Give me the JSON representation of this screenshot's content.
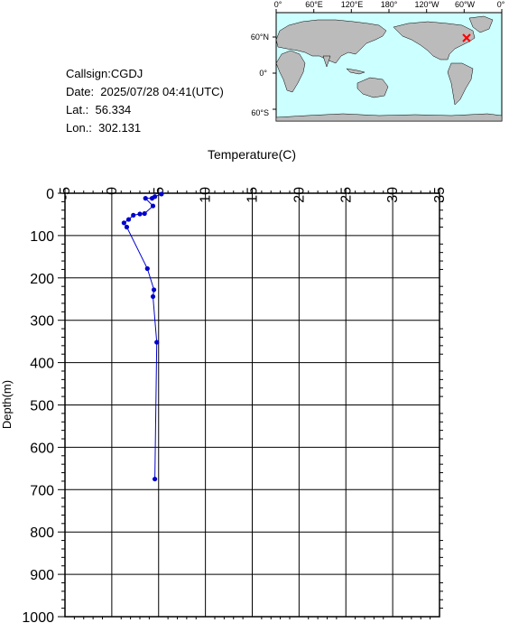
{
  "info": {
    "callsign": "Callsign:CGDJ",
    "date": "Date:  2025/07/28 04:41(UTC)",
    "lat": "Lat.:  56.334",
    "lon": "Lon.:  302.131"
  },
  "map": {
    "top_lon_labels": [
      "0°",
      "60°E",
      "120°E",
      "180°",
      "120°W",
      "60°W",
      "0°"
    ],
    "lat_labels": [
      "60°N",
      "0°",
      "60°S"
    ],
    "ocean_color": "#ccffff",
    "land_color": "#bbbbbb",
    "marker_color": "#ff0000",
    "station": {
      "lat": 56.334,
      "lon": 302.131
    }
  },
  "chart_data": {
    "type": "line",
    "xlabel": "Temperature(C)",
    "ylabel": "Depth(m)",
    "xlim": [
      -5,
      35
    ],
    "ylim": [
      0,
      1000
    ],
    "y_inverted": true,
    "grid": true,
    "x_ticks": [
      -5,
      0,
      5,
      10,
      15,
      20,
      25,
      30,
      35
    ],
    "y_ticks": [
      0,
      100,
      200,
      300,
      400,
      500,
      600,
      700,
      800,
      900,
      1000
    ],
    "line_color": "#0000cc",
    "series": [
      {
        "points": [
          {
            "t": 5.3,
            "d": 2
          },
          {
            "t": 4.6,
            "d": 8
          },
          {
            "t": 4.3,
            "d": 12
          },
          {
            "t": 3.6,
            "d": 12
          },
          {
            "t": 4.4,
            "d": 30
          },
          {
            "t": 3.5,
            "d": 48
          },
          {
            "t": 3.0,
            "d": 49
          },
          {
            "t": 2.3,
            "d": 52
          },
          {
            "t": 1.8,
            "d": 62
          },
          {
            "t": 1.3,
            "d": 70
          },
          {
            "t": 1.6,
            "d": 80
          },
          {
            "t": 3.8,
            "d": 178
          },
          {
            "t": 4.5,
            "d": 228
          },
          {
            "t": 4.4,
            "d": 244
          },
          {
            "t": 4.8,
            "d": 352
          },
          {
            "t": 4.6,
            "d": 675
          }
        ]
      }
    ]
  }
}
